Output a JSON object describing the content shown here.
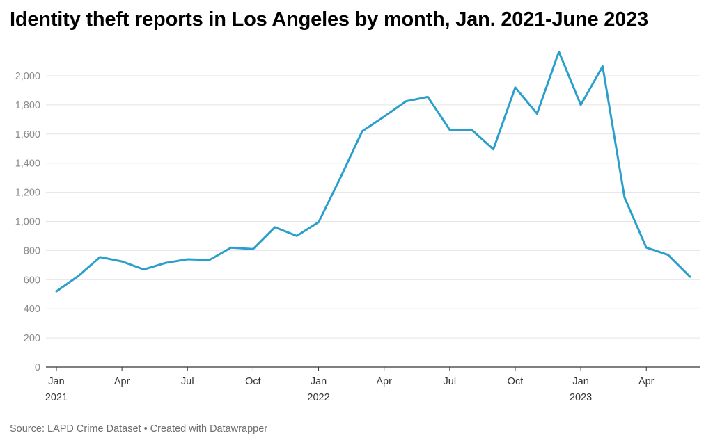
{
  "title": "Identity theft reports in Los Angeles by month, Jan. 2021-June 2023",
  "footer": {
    "source": "Source: LAPD Crime Dataset",
    "separator": "•",
    "credit": "Created with Datawrapper"
  },
  "colors": {
    "line": "#2a9fcb",
    "grid": "#e4e4e4",
    "axis": "#333333"
  },
  "chart_data": {
    "type": "line",
    "title": "Identity theft reports in Los Angeles by month, Jan. 2021-June 2023",
    "xlabel": "",
    "ylabel": "",
    "ylim": [
      0,
      2000
    ],
    "y_ticks": [
      0,
      200,
      400,
      600,
      800,
      1000,
      1200,
      1400,
      1600,
      1800,
      2000
    ],
    "y_tick_labels": [
      "0",
      "200",
      "400",
      "600",
      "800",
      "1,000",
      "1,200",
      "1,400",
      "1,600",
      "1,800",
      "2,000"
    ],
    "x_ticks": [
      {
        "label": "Jan",
        "year": "2021",
        "date": "2021-01"
      },
      {
        "label": "Apr",
        "year": "",
        "date": "2021-04"
      },
      {
        "label": "Jul",
        "year": "",
        "date": "2021-07"
      },
      {
        "label": "Oct",
        "year": "",
        "date": "2021-10"
      },
      {
        "label": "Jan",
        "year": "2022",
        "date": "2022-01"
      },
      {
        "label": "Apr",
        "year": "",
        "date": "2022-04"
      },
      {
        "label": "Jul",
        "year": "",
        "date": "2022-07"
      },
      {
        "label": "Oct",
        "year": "",
        "date": "2022-10"
      },
      {
        "label": "Jan",
        "year": "2023",
        "date": "2023-01"
      },
      {
        "label": "Apr",
        "year": "",
        "date": "2023-04"
      }
    ],
    "grid": true,
    "legend": "none",
    "series": [
      {
        "x": [
          "2021-01",
          "2021-02",
          "2021-03",
          "2021-04",
          "2021-05",
          "2021-06",
          "2021-07",
          "2021-08",
          "2021-09",
          "2021-10",
          "2021-11",
          "2021-12",
          "2022-01",
          "2022-02",
          "2022-03",
          "2022-04",
          "2022-05",
          "2022-06",
          "2022-07",
          "2022-08",
          "2022-09",
          "2022-10",
          "2022-11",
          "2022-12",
          "2023-01",
          "2023-02",
          "2023-03",
          "2023-04",
          "2023-05",
          "2023-06"
        ],
        "values": [
          520,
          625,
          755,
          725,
          670,
          715,
          740,
          735,
          820,
          810,
          960,
          900,
          995,
          1300,
          1620,
          1720,
          1825,
          1855,
          1630,
          1630,
          1495,
          1920,
          1740,
          2165,
          1800,
          2065,
          1165,
          820,
          770,
          620
        ]
      }
    ]
  }
}
